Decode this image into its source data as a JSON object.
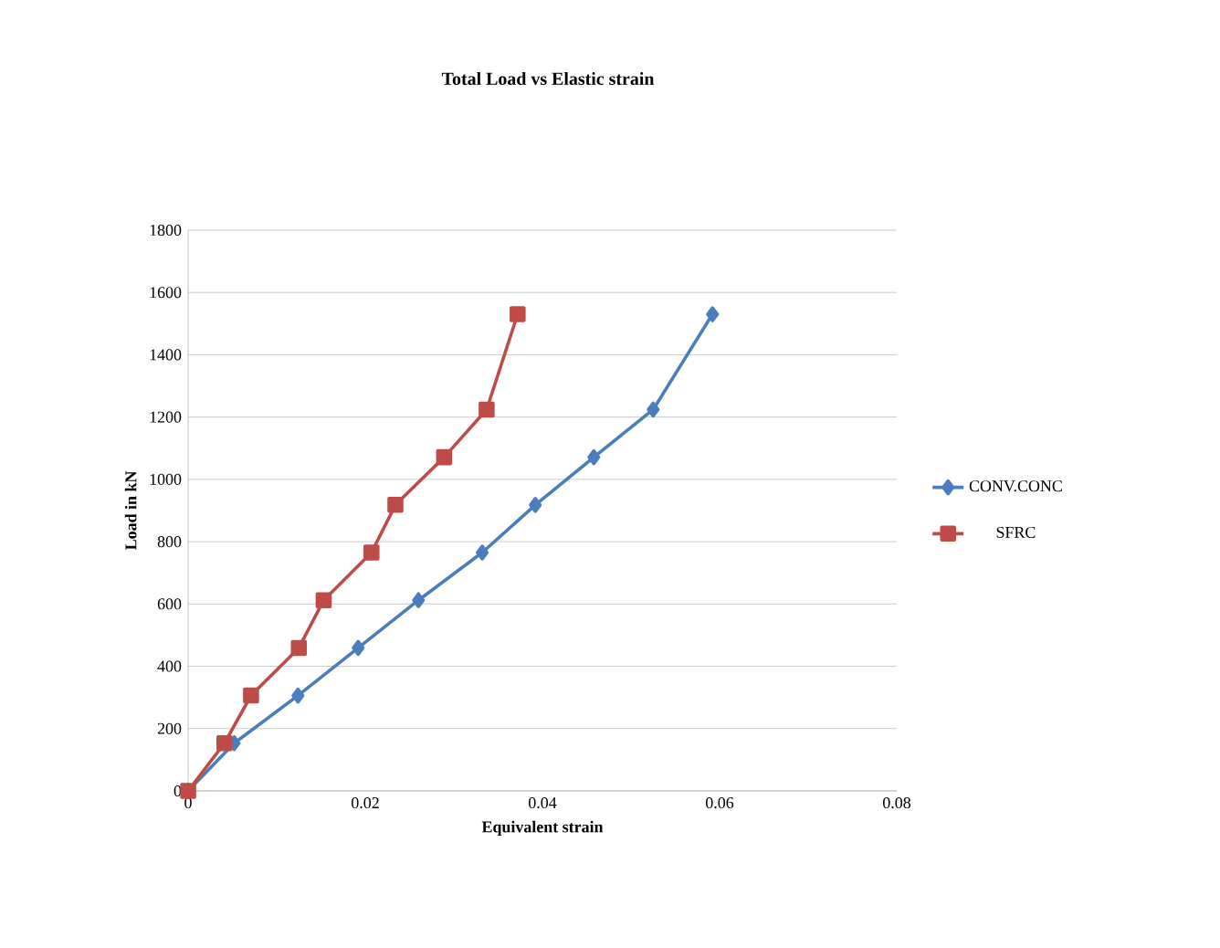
{
  "chart_data": {
    "type": "line",
    "title": "Total Load vs Elastic strain",
    "xlabel": "Equivalent strain",
    "ylabel": "Load in kN",
    "xlim": [
      0,
      0.08
    ],
    "xticks": [
      0,
      0.02,
      0.04,
      0.06,
      0.08
    ],
    "ylim": [
      0,
      1800
    ],
    "yticks": [
      0,
      200,
      400,
      600,
      800,
      1000,
      1200,
      1400,
      1600,
      1800
    ],
    "grid": "y",
    "legend": "right",
    "series": [
      {
        "name": "CONV.CONC",
        "color": "#4a7ebb",
        "marker": "diamond",
        "x": [
          0,
          0.0052,
          0.0124,
          0.0192,
          0.026,
          0.0332,
          0.0392,
          0.0458,
          0.0525,
          0.0592
        ],
        "values": [
          0,
          153,
          306,
          459,
          612,
          765,
          918,
          1071,
          1224,
          1530
        ]
      },
      {
        "name": "SFRC",
        "color": "#be4b48",
        "marker": "square",
        "x": [
          0,
          0.0041,
          0.0071,
          0.0125,
          0.0153,
          0.0207,
          0.0234,
          0.0289,
          0.0337,
          0.0372
        ],
        "values": [
          0,
          153,
          306,
          459,
          612,
          765,
          918,
          1071,
          1224,
          1530
        ]
      }
    ]
  }
}
